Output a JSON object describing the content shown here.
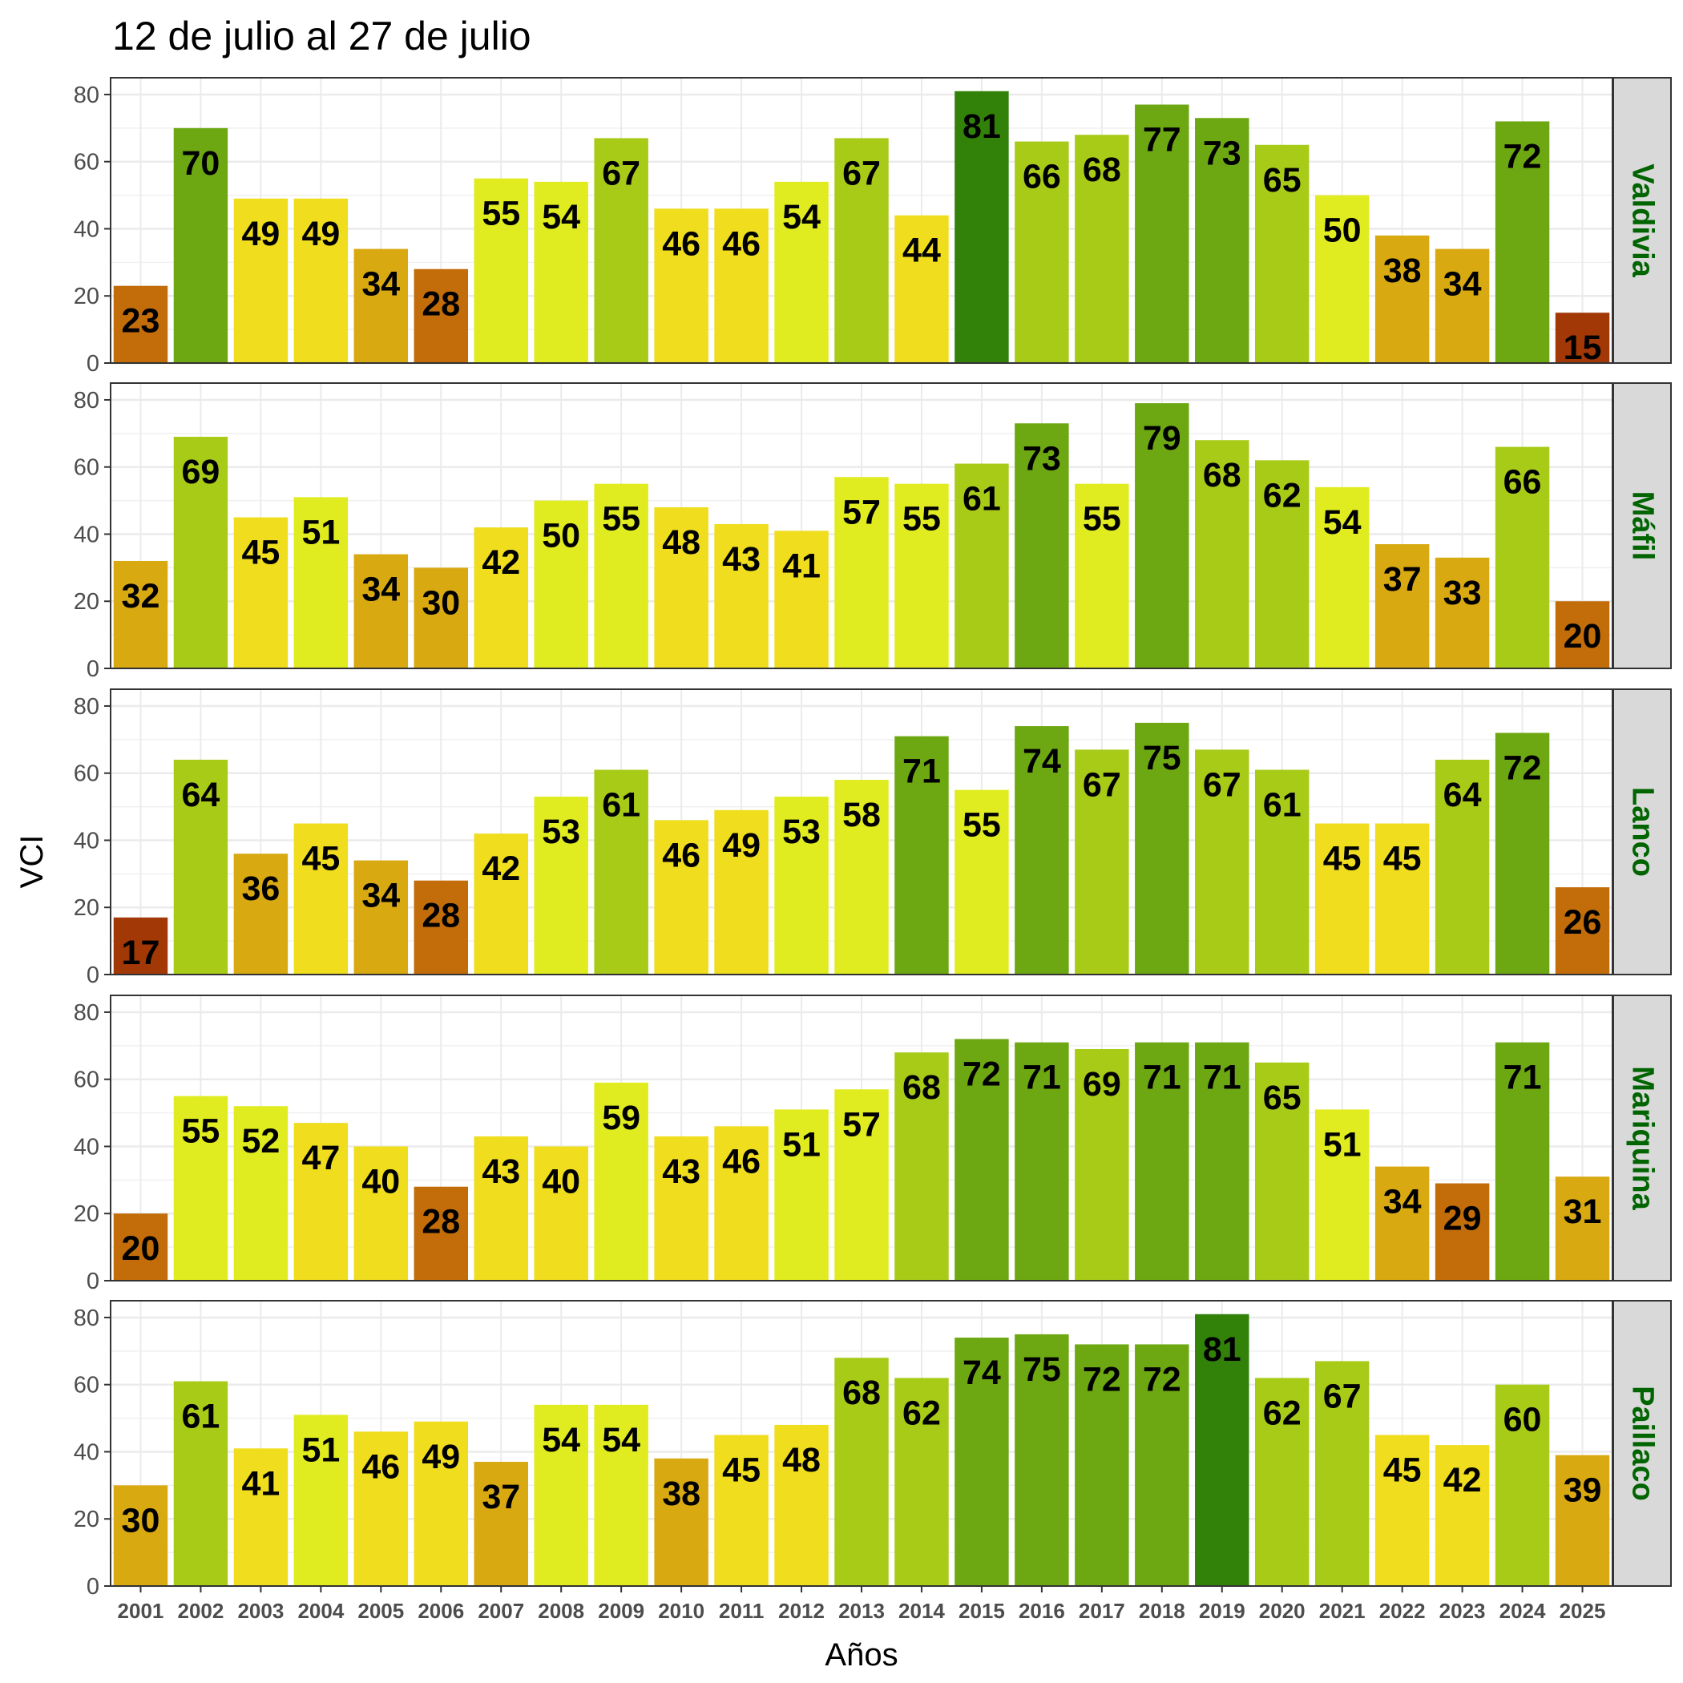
{
  "chart_data": {
    "type": "bar",
    "title": "12 de julio al 27 de julio",
    "xlabel": "Años",
    "ylabel": "VCI",
    "ylim": [
      0,
      85
    ],
    "yticks": [
      0,
      20,
      40,
      60,
      80
    ],
    "grid": true,
    "strip_color": "#006400",
    "categories": [
      "2001",
      "2002",
      "2003",
      "2004",
      "2005",
      "2006",
      "2007",
      "2008",
      "2009",
      "2010",
      "2011",
      "2012",
      "2013",
      "2014",
      "2015",
      "2016",
      "2017",
      "2018",
      "2019",
      "2020",
      "2021",
      "2022",
      "2023",
      "2024",
      "2025"
    ],
    "panels": [
      {
        "name": "Valdivia",
        "values": [
          23,
          70,
          49,
          49,
          34,
          28,
          55,
          54,
          67,
          46,
          46,
          54,
          67,
          44,
          81,
          66,
          68,
          77,
          73,
          65,
          50,
          38,
          34,
          72,
          15
        ]
      },
      {
        "name": "Máfil",
        "values": [
          32,
          69,
          45,
          51,
          34,
          30,
          42,
          50,
          55,
          48,
          43,
          41,
          57,
          55,
          61,
          73,
          55,
          79,
          68,
          62,
          54,
          37,
          33,
          66,
          20
        ]
      },
      {
        "name": "Lanco",
        "values": [
          17,
          64,
          36,
          45,
          34,
          28,
          42,
          53,
          61,
          46,
          49,
          53,
          58,
          71,
          55,
          74,
          67,
          75,
          67,
          61,
          45,
          45,
          64,
          72,
          26
        ]
      },
      {
        "name": "Mariquina",
        "values": [
          20,
          55,
          52,
          47,
          40,
          28,
          43,
          40,
          59,
          43,
          46,
          51,
          57,
          68,
          72,
          71,
          69,
          71,
          71,
          65,
          51,
          34,
          29,
          71,
          31
        ]
      },
      {
        "name": "Paillaco",
        "values": [
          30,
          61,
          41,
          51,
          46,
          49,
          37,
          54,
          54,
          38,
          45,
          48,
          68,
          62,
          74,
          75,
          72,
          72,
          81,
          62,
          67,
          45,
          42,
          60,
          39
        ]
      }
    ],
    "color_scale": [
      {
        "min": 0,
        "max": 20,
        "color": "#A23806"
      },
      {
        "min": 20,
        "max": 30,
        "color": "#C26D0A"
      },
      {
        "min": 30,
        "max": 40,
        "color": "#D8A911"
      },
      {
        "min": 40,
        "max": 50,
        "color": "#EFDD1E"
      },
      {
        "min": 50,
        "max": 60,
        "color": "#E0EC1F"
      },
      {
        "min": 60,
        "max": 70,
        "color": "#A8CB18"
      },
      {
        "min": 70,
        "max": 80,
        "color": "#6DA812"
      },
      {
        "min": 80,
        "max": 101,
        "color": "#32820A"
      }
    ]
  }
}
